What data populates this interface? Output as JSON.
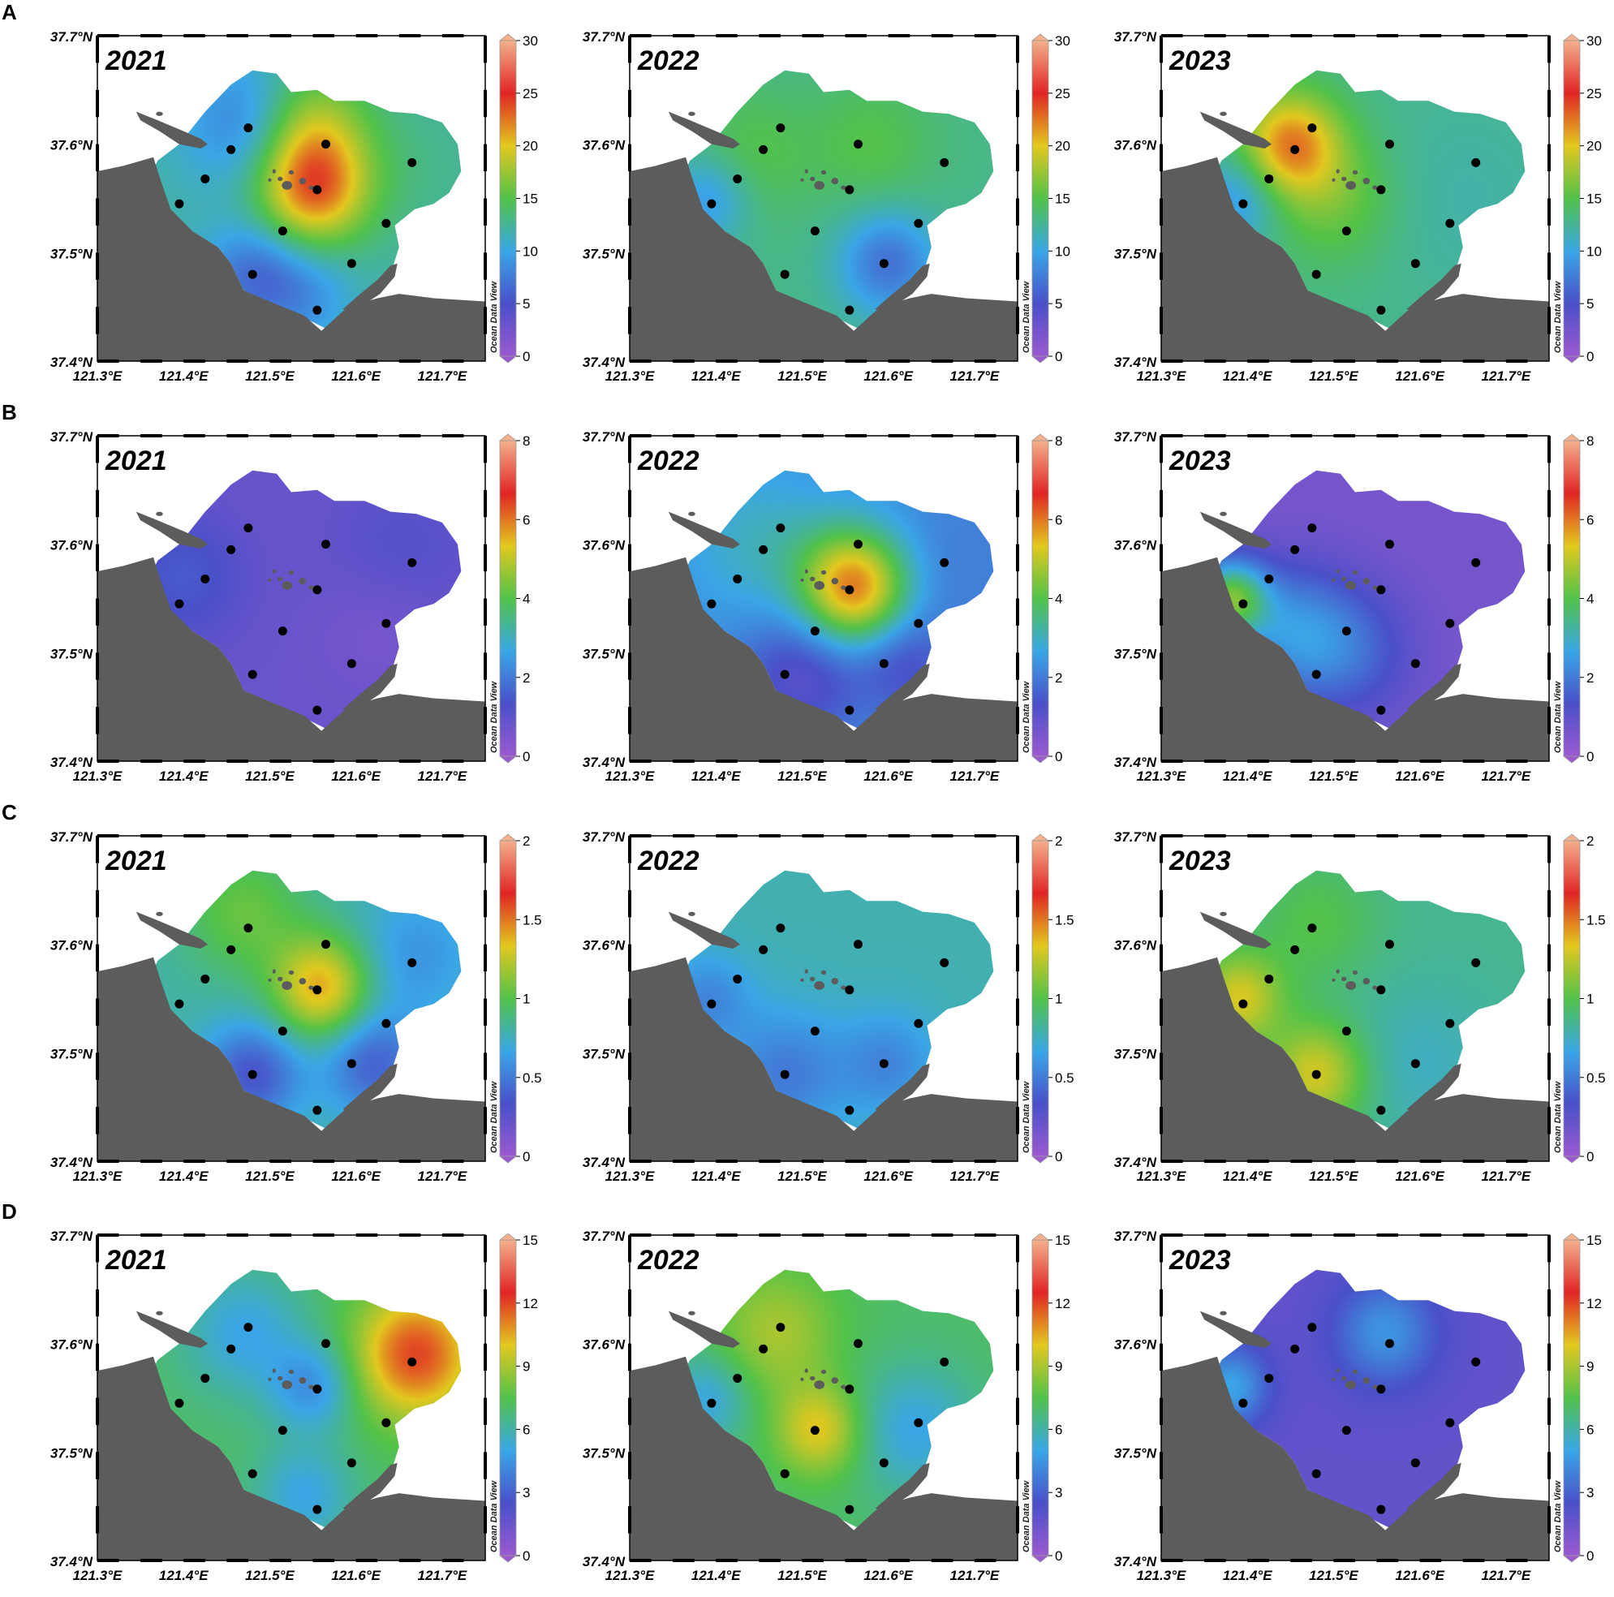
{
  "rows": [
    {
      "letter": "A",
      "colorbar": {
        "max": 30,
        "ticks": [
          "0",
          "5",
          "10",
          "15",
          "20",
          "25",
          "30"
        ]
      },
      "panels": [
        {
          "year": "2021",
          "hotspots": [
            {
              "lon": 121.55,
              "lat": 37.56,
              "value": 23,
              "spread": 0.045
            },
            {
              "lon": 121.55,
              "lat": 37.62,
              "value": 17,
              "spread": 0.045
            },
            {
              "lon": 121.47,
              "lat": 37.62,
              "value": 8,
              "spread": 0.05
            },
            {
              "lon": 121.48,
              "lat": 37.48,
              "value": 7,
              "spread": 0.04
            },
            {
              "lon": 121.54,
              "lat": 37.46,
              "value": 9,
              "spread": 0.04
            },
            {
              "lon": 121.66,
              "lat": 37.58,
              "value": 13,
              "spread": 0.06
            }
          ],
          "base": 12
        },
        {
          "year": "2022",
          "hotspots": [
            {
              "lon": 121.6,
              "lat": 37.49,
              "value": 7,
              "spread": 0.04
            },
            {
              "lon": 121.58,
              "lat": 37.6,
              "value": 15,
              "spread": 0.05
            },
            {
              "lon": 121.44,
              "lat": 37.59,
              "value": 15,
              "spread": 0.05
            },
            {
              "lon": 121.39,
              "lat": 37.55,
              "value": 9,
              "spread": 0.035
            }
          ],
          "base": 13
        },
        {
          "year": "2023",
          "hotspots": [
            {
              "lon": 121.45,
              "lat": 37.6,
              "value": 22,
              "spread": 0.04
            },
            {
              "lon": 121.5,
              "lat": 37.55,
              "value": 16,
              "spread": 0.05
            },
            {
              "lon": 121.39,
              "lat": 37.55,
              "value": 9,
              "spread": 0.035
            },
            {
              "lon": 121.65,
              "lat": 37.55,
              "value": 12,
              "spread": 0.08
            }
          ],
          "base": 13
        }
      ]
    },
    {
      "letter": "B",
      "colorbar": {
        "max": 8,
        "ticks": [
          "0",
          "2",
          "4",
          "6",
          "8"
        ]
      },
      "panels": [
        {
          "year": "2021",
          "hotspots": [
            {
              "lon": 121.4,
              "lat": 37.57,
              "value": 1.5,
              "spread": 0.05
            },
            {
              "lon": 121.65,
              "lat": 37.59,
              "value": 1.2,
              "spread": 0.06
            },
            {
              "lon": 121.63,
              "lat": 37.53,
              "value": 0.5,
              "spread": 0.05
            }
          ],
          "base": 0.8
        },
        {
          "year": "2022",
          "hotspots": [
            {
              "lon": 121.56,
              "lat": 37.56,
              "value": 6,
              "spread": 0.045
            },
            {
              "lon": 121.45,
              "lat": 37.6,
              "value": 3,
              "spread": 0.06
            },
            {
              "lon": 121.5,
              "lat": 37.48,
              "value": 1,
              "spread": 0.05
            },
            {
              "lon": 121.62,
              "lat": 37.49,
              "value": 1.3,
              "spread": 0.04
            },
            {
              "lon": 121.67,
              "lat": 37.58,
              "value": 2,
              "spread": 0.06
            }
          ],
          "base": 2.3
        },
        {
          "year": "2023",
          "hotspots": [
            {
              "lon": 121.38,
              "lat": 37.55,
              "value": 4,
              "spread": 0.03
            },
            {
              "lon": 121.45,
              "lat": 37.52,
              "value": 2.2,
              "spread": 0.05
            },
            {
              "lon": 121.52,
              "lat": 37.5,
              "value": 1.6,
              "spread": 0.05
            }
          ],
          "base": 0.6
        }
      ]
    },
    {
      "letter": "C",
      "colorbar": {
        "max": 2,
        "ticks": [
          "0",
          "0.5",
          "1",
          "1.5",
          "2"
        ]
      },
      "panels": [
        {
          "year": "2021",
          "hotspots": [
            {
              "lon": 121.56,
              "lat": 37.56,
              "value": 1.4,
              "spread": 0.04
            },
            {
              "lon": 121.47,
              "lat": 37.63,
              "value": 1.05,
              "spread": 0.05
            },
            {
              "lon": 121.48,
              "lat": 37.48,
              "value": 0.35,
              "spread": 0.04
            },
            {
              "lon": 121.62,
              "lat": 37.49,
              "value": 0.4,
              "spread": 0.04
            },
            {
              "lon": 121.67,
              "lat": 37.59,
              "value": 0.6,
              "spread": 0.05
            }
          ],
          "base": 0.8
        },
        {
          "year": "2022",
          "hotspots": [
            {
              "lon": 121.48,
              "lat": 37.48,
              "value": 0.5,
              "spread": 0.05
            },
            {
              "lon": 121.6,
              "lat": 37.49,
              "value": 0.55,
              "spread": 0.04
            },
            {
              "lon": 121.39,
              "lat": 37.55,
              "value": 0.55,
              "spread": 0.035
            }
          ],
          "base": 0.78
        },
        {
          "year": "2023",
          "hotspots": [
            {
              "lon": 121.48,
              "lat": 37.48,
              "value": 1.3,
              "spread": 0.04
            },
            {
              "lon": 121.39,
              "lat": 37.55,
              "value": 1.3,
              "spread": 0.035
            },
            {
              "lon": 121.48,
              "lat": 37.62,
              "value": 1.0,
              "spread": 0.05
            },
            {
              "lon": 121.6,
              "lat": 37.49,
              "value": 0.75,
              "spread": 0.06
            }
          ],
          "base": 0.85
        }
      ]
    },
    {
      "letter": "D",
      "colorbar": {
        "max": 15,
        "ticks": [
          "0",
          "3",
          "6",
          "9",
          "12",
          "15"
        ]
      },
      "panels": [
        {
          "year": "2021",
          "hotspots": [
            {
              "lon": 121.67,
              "lat": 37.59,
              "value": 12,
              "spread": 0.05
            },
            {
              "lon": 121.47,
              "lat": 37.61,
              "value": 5,
              "spread": 0.05
            },
            {
              "lon": 121.55,
              "lat": 37.56,
              "value": 4.5,
              "spread": 0.035
            },
            {
              "lon": 121.54,
              "lat": 37.46,
              "value": 5,
              "spread": 0.04
            }
          ],
          "base": 7
        },
        {
          "year": "2022",
          "hotspots": [
            {
              "lon": 121.52,
              "lat": 37.52,
              "value": 10,
              "spread": 0.035
            },
            {
              "lon": 121.47,
              "lat": 37.61,
              "value": 9,
              "spread": 0.05
            },
            {
              "lon": 121.63,
              "lat": 37.52,
              "value": 5,
              "spread": 0.05
            },
            {
              "lon": 121.39,
              "lat": 37.55,
              "value": 5,
              "spread": 0.035
            }
          ],
          "base": 7
        },
        {
          "year": "2023",
          "hotspots": [
            {
              "lon": 121.56,
              "lat": 37.61,
              "value": 4.5,
              "spread": 0.04
            },
            {
              "lon": 121.38,
              "lat": 37.56,
              "value": 5,
              "spread": 0.03
            }
          ],
          "base": 1.8
        }
      ]
    }
  ],
  "map": {
    "lat_labels": [
      "37.4°N",
      "37.5°N",
      "37.6°N",
      "37.7°N"
    ],
    "lon_labels": [
      "121.3°E",
      "121.4°E",
      "121.5°E",
      "121.6°E",
      "121.7°E"
    ],
    "colorbar_label": "Ocean Data View",
    "stations": [
      {
        "lon": 121.475,
        "lat": 37.615
      },
      {
        "lon": 121.455,
        "lat": 37.595
      },
      {
        "lon": 121.565,
        "lat": 37.6
      },
      {
        "lon": 121.665,
        "lat": 37.583
      },
      {
        "lon": 121.425,
        "lat": 37.568
      },
      {
        "lon": 121.555,
        "lat": 37.558
      },
      {
        "lon": 121.395,
        "lat": 37.545
      },
      {
        "lon": 121.515,
        "lat": 37.52
      },
      {
        "lon": 121.635,
        "lat": 37.527
      },
      {
        "lon": 121.48,
        "lat": 37.48
      },
      {
        "lon": 121.595,
        "lat": 37.49
      },
      {
        "lon": 121.555,
        "lat": 37.447
      }
    ],
    "colors": {
      "land": "#5c5c5c",
      "frame": "#000000",
      "station": "#000000",
      "scale": [
        "#9b59d0",
        "#4a50c8",
        "#3aa6e6",
        "#52c24a",
        "#e2c81f",
        "#e02525",
        "#f4b08c"
      ]
    }
  }
}
